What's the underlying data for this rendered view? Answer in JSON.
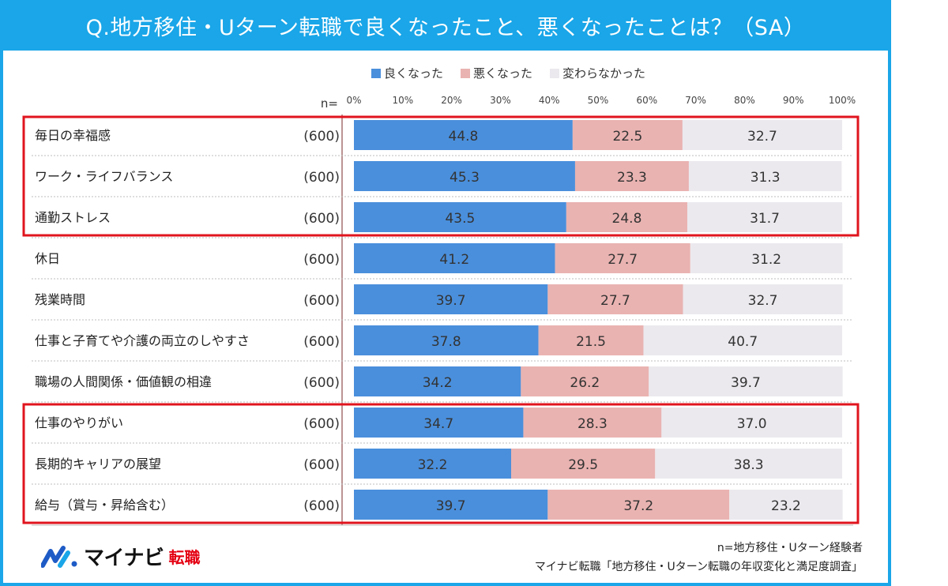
{
  "header": {
    "title": "Q.地方移住・Uターン転職で良くなったこと、悪くなったことは？（SA）"
  },
  "chart_data": {
    "type": "bar",
    "stacked": true,
    "orientation": "horizontal",
    "n_label": "n=",
    "x_ticks": [
      "0%",
      "10%",
      "20%",
      "30%",
      "40%",
      "50%",
      "60%",
      "70%",
      "80%",
      "90%",
      "100%"
    ],
    "xlim": [
      0,
      100
    ],
    "legend": {
      "position": "top"
    },
    "categories": [
      "毎日の幸福感",
      "ワーク・ライフバランス",
      "通勤ストレス",
      "休日",
      "残業時間",
      "仕事と子育てや介護の両立のしやすさ",
      "職場の人間関係・価値観の相違",
      "仕事のやりがい",
      "長期的キャリアの展望",
      "給与（賞与・昇給含む）"
    ],
    "n_values": [
      "(600)",
      "(600)",
      "(600)",
      "(600)",
      "(600)",
      "(600)",
      "(600)",
      "(600)",
      "(600)",
      "(600)"
    ],
    "series": [
      {
        "name": "良くなった",
        "color": "#4a8fdc",
        "values": [
          44.8,
          45.3,
          43.5,
          41.2,
          39.7,
          37.8,
          34.2,
          34.7,
          32.2,
          39.7
        ]
      },
      {
        "name": "悪くなった",
        "color": "#e9b3b1",
        "values": [
          22.5,
          23.3,
          24.8,
          27.7,
          27.7,
          21.5,
          26.2,
          28.3,
          29.5,
          37.2
        ]
      },
      {
        "name": "変わらなかった",
        "color": "#ebe9ee",
        "values": [
          32.7,
          31.3,
          31.7,
          31.2,
          32.7,
          40.7,
          39.7,
          37.0,
          38.3,
          23.2
        ]
      }
    ],
    "value_labels": [
      [
        "44.8",
        "22.5",
        "32.7"
      ],
      [
        "45.3",
        "23.3",
        "31.3"
      ],
      [
        "43.5",
        "24.8",
        "31.7"
      ],
      [
        "41.2",
        "27.7",
        "31.2"
      ],
      [
        "39.7",
        "27.7",
        "32.7"
      ],
      [
        "37.8",
        "21.5",
        "40.7"
      ],
      [
        "34.2",
        "26.2",
        "39.7"
      ],
      [
        "34.7",
        "28.3",
        "37.0"
      ],
      [
        "32.2",
        "29.5",
        "38.3"
      ],
      [
        "39.7",
        "37.2",
        "23.2"
      ]
    ],
    "highlight_groups": [
      [
        0,
        2
      ],
      [
        7,
        9
      ]
    ],
    "highlight_color": "#e0141e"
  },
  "footer": {
    "logo_main": "マイナビ",
    "logo_sub": "転職",
    "note1": "n=地方移住・Uターン経験者",
    "note2": "マイナビ転職「地方移住・Uターン転職の年収変化と満足度調査」"
  }
}
